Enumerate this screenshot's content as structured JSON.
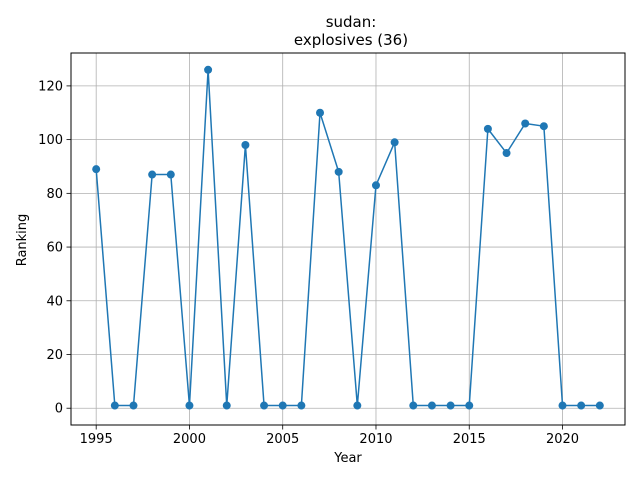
{
  "chart_data": {
    "type": "line",
    "title_line1": "sudan:",
    "title_line2": "explosives (36)",
    "xlabel": "Year",
    "ylabel": "Ranking",
    "xlim": [
      1993.65,
      2023.35
    ],
    "ylim": [
      -6.25,
      132.25
    ],
    "xticks": [
      1995,
      2000,
      2005,
      2010,
      2015,
      2020
    ],
    "yticks": [
      0,
      20,
      40,
      60,
      80,
      100,
      120
    ],
    "grid": true,
    "series": [
      {
        "color": "#1f77b4",
        "marker": "circle",
        "x": [
          1995,
          1996,
          1997,
          1998,
          1999,
          2000,
          2001,
          2002,
          2003,
          2004,
          2005,
          2006,
          2007,
          2008,
          2009,
          2010,
          2011,
          2012,
          2013,
          2014,
          2015,
          2016,
          2017,
          2018,
          2019,
          2020,
          2021,
          2022
        ],
        "y": [
          89,
          1,
          1,
          87,
          87,
          1,
          126,
          1,
          98,
          1,
          1,
          1,
          110,
          88,
          1,
          83,
          99,
          1,
          1,
          1,
          1,
          104,
          95,
          106,
          105,
          1,
          1,
          1
        ]
      }
    ]
  }
}
